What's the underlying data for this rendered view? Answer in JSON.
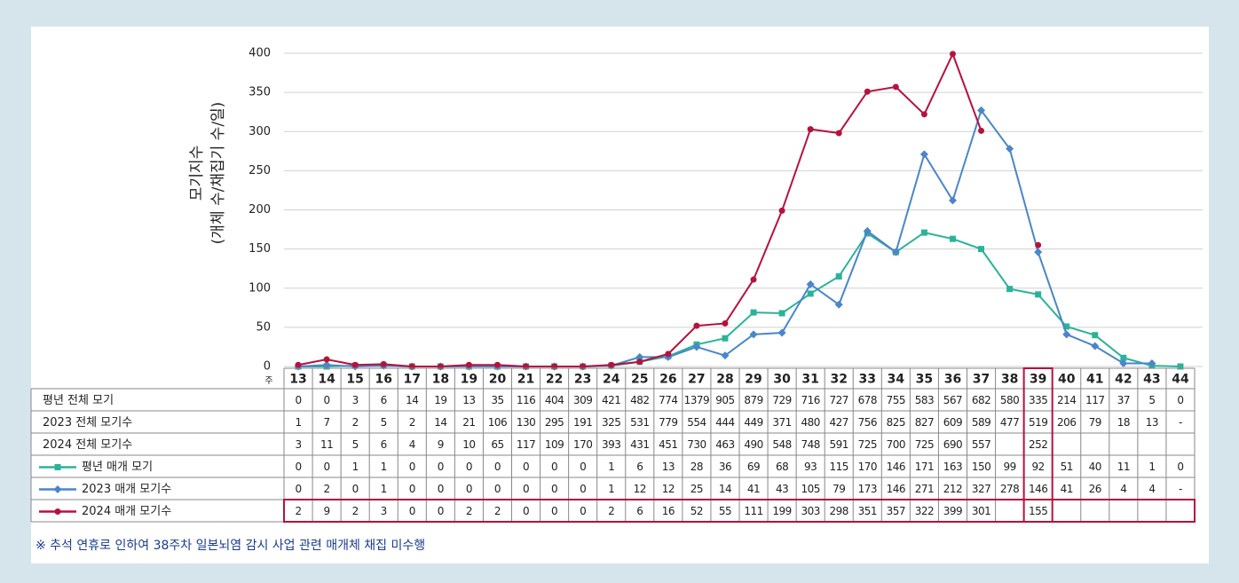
{
  "chart_data": {
    "type": "line",
    "ylabel": [
      "모기지수",
      "(개체 수/채집기 수/일)"
    ],
    "xlabel": "주",
    "categories": [
      13,
      14,
      15,
      16,
      17,
      18,
      19,
      20,
      21,
      22,
      23,
      24,
      25,
      26,
      27,
      28,
      29,
      30,
      31,
      32,
      33,
      34,
      35,
      36,
      37,
      38,
      39,
      40,
      41,
      42,
      43,
      44
    ],
    "ylim": [
      0,
      400
    ],
    "yticks": [
      0,
      50,
      100,
      150,
      200,
      250,
      300,
      350,
      400
    ],
    "grid": true,
    "highlight_category": 39,
    "highlight_color": "#b5123e",
    "series": [
      {
        "name": "평년 매개 모기",
        "color": "#2bb39a",
        "marker": "square",
        "values": [
          0,
          0,
          1,
          1,
          0,
          0,
          0,
          0,
          0,
          0,
          0,
          1,
          6,
          13,
          28,
          36,
          69,
          68,
          93,
          115,
          170,
          146,
          171,
          163,
          150,
          99,
          92,
          51,
          40,
          11,
          1,
          0
        ]
      },
      {
        "name": "2023 매개 모기수",
        "color": "#4a86c8",
        "marker": "diamond",
        "values": [
          0,
          2,
          0,
          1,
          0,
          0,
          0,
          0,
          0,
          0,
          0,
          1,
          12,
          12,
          25,
          14,
          41,
          43,
          105,
          79,
          173,
          146,
          271,
          212,
          327,
          278,
          146,
          41,
          26,
          4,
          4,
          null
        ],
        "value_labels": [
          "0",
          "2",
          "0",
          "1",
          "0",
          "0",
          "0",
          "0",
          "0",
          "0",
          "0",
          "1",
          "12",
          "12",
          "25",
          "14",
          "41",
          "43",
          "105",
          "79",
          "173",
          "146",
          "271",
          "212",
          "327",
          "278",
          "146",
          "41",
          "26",
          "4",
          "4",
          "-"
        ]
      },
      {
        "name": "2024 매개 모기수",
        "color": "#b5123e",
        "marker": "circle",
        "values": [
          2,
          9,
          2,
          3,
          0,
          0,
          2,
          2,
          0,
          0,
          0,
          2,
          6,
          16,
          52,
          55,
          111,
          199,
          303,
          298,
          351,
          357,
          322,
          399,
          301,
          null,
          155,
          null,
          null,
          null,
          null,
          null
        ]
      }
    ]
  },
  "table": {
    "rows": [
      {
        "name": "평년 전체 모기",
        "values": [
          0,
          0,
          3,
          6,
          14,
          19,
          13,
          35,
          116,
          404,
          309,
          421,
          482,
          774,
          1379,
          905,
          879,
          729,
          716,
          727,
          678,
          755,
          583,
          567,
          682,
          580,
          335,
          214,
          117,
          37,
          5,
          0
        ]
      },
      {
        "name": "2023 전체 모기수",
        "values": [
          1,
          7,
          2,
          5,
          2,
          14,
          21,
          106,
          130,
          295,
          191,
          325,
          531,
          779,
          554,
          444,
          449,
          371,
          480,
          427,
          756,
          825,
          827,
          609,
          589,
          477,
          519,
          206,
          79,
          18,
          13,
          null
        ],
        "value_labels": [
          "1",
          "7",
          "2",
          "5",
          "2",
          "14",
          "21",
          "106",
          "130",
          "295",
          "191",
          "325",
          "531",
          "779",
          "554",
          "444",
          "449",
          "371",
          "480",
          "427",
          "756",
          "825",
          "827",
          "609",
          "589",
          "477",
          "519",
          "206",
          "79",
          "18",
          "13",
          "-"
        ]
      },
      {
        "name": "2024 전체 모기수",
        "values": [
          3,
          11,
          5,
          6,
          4,
          9,
          10,
          65,
          117,
          109,
          170,
          393,
          431,
          451,
          730,
          463,
          490,
          548,
          748,
          591,
          725,
          700,
          725,
          690,
          557,
          null,
          252,
          null,
          null,
          null,
          null,
          null
        ]
      }
    ]
  },
  "footnote": "※ 추석 연휴로 인하여 38주차 일본뇌염 감시 사업 관련 매개체 채집 미수행"
}
